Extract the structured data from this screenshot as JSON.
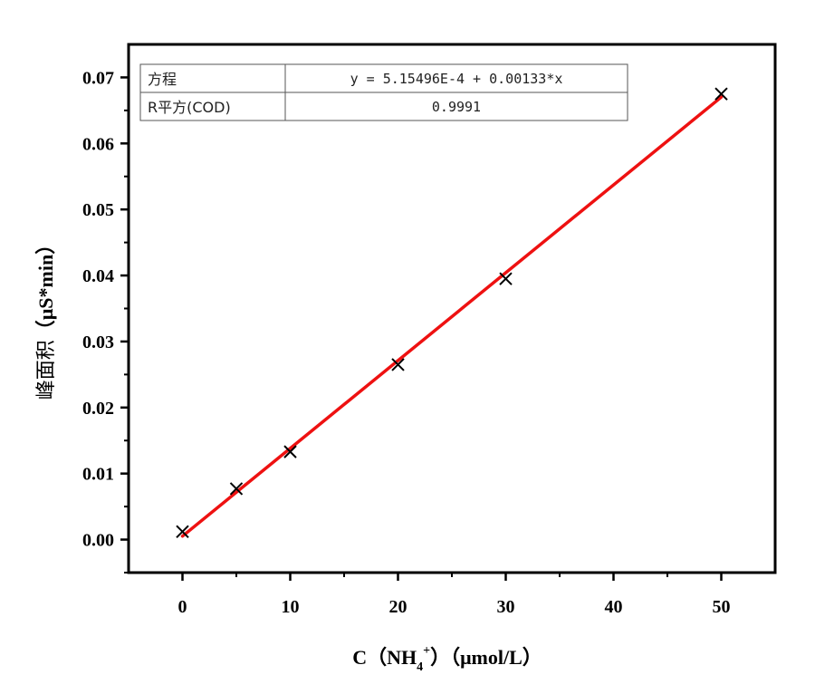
{
  "chart_data": {
    "type": "scatter",
    "x": [
      0,
      5,
      10,
      20,
      30,
      50
    ],
    "y": [
      0.0012,
      0.0077,
      0.0133,
      0.0265,
      0.0395,
      0.0675
    ],
    "marker": "x",
    "marker_color": "#000000",
    "fit": {
      "type": "linear",
      "intercept": 0.000515496,
      "slope": 0.00133,
      "color": "#ee1111"
    },
    "xlim": [
      -5,
      55
    ],
    "ylim": [
      -0.005,
      0.075
    ],
    "xticks": [
      0,
      10,
      20,
      30,
      40,
      50
    ],
    "xtick_labels": [
      "0",
      "10",
      "20",
      "30",
      "40",
      "50"
    ],
    "yticks": [
      0,
      0.01,
      0.02,
      0.03,
      0.04,
      0.05,
      0.06,
      0.07
    ],
    "ytick_labels": [
      "0.00",
      "0.01",
      "0.02",
      "0.03",
      "0.04",
      "0.05",
      "0.06",
      "0.07"
    ],
    "xlabel": {
      "pre": "C（NH",
      "sub": "4",
      "sup": "+",
      "post": "）（μmol/L）"
    },
    "ylabel": {
      "cjk": "峰面积",
      "rest": "（μS*min）"
    },
    "grid": false,
    "table": {
      "rows": [
        {
          "label": "方程",
          "value": "y = 5.15496E-4 + 0.00133*x"
        },
        {
          "label": "R平方(COD)",
          "value": "0.9991"
        }
      ]
    }
  }
}
